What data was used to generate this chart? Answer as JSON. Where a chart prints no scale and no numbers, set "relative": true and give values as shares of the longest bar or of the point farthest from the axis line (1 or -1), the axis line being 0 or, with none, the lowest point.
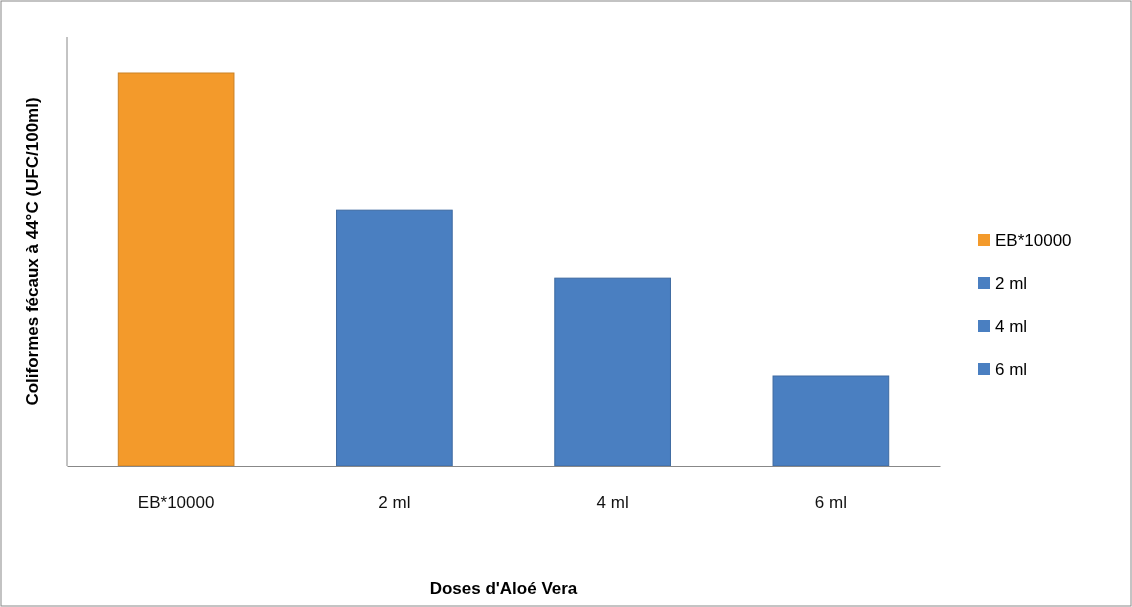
{
  "chart_data": {
    "type": "bar",
    "relative": true,
    "xlabel": "Doses d'Aloé Vera",
    "ylabel": "Coliformes fécaux à 44°C (UFC/100ml)",
    "categories": [
      "EB*10000",
      "2 ml",
      "4 ml",
      "6 ml"
    ],
    "series": [
      {
        "name": "EB*10000",
        "color": "#f39a2b",
        "values": [
          1,
          null,
          null,
          null
        ]
      },
      {
        "name": "2 ml",
        "color": "#4a7fc1",
        "values": [
          null,
          0.651,
          null,
          null
        ]
      },
      {
        "name": "4 ml",
        "color": "#4a7fc1",
        "values": [
          null,
          null,
          0.478,
          null
        ]
      },
      {
        "name": "6 ml",
        "color": "#4a7fc1",
        "values": [
          null,
          null,
          null,
          0.229
        ]
      }
    ],
    "legend": "right"
  }
}
